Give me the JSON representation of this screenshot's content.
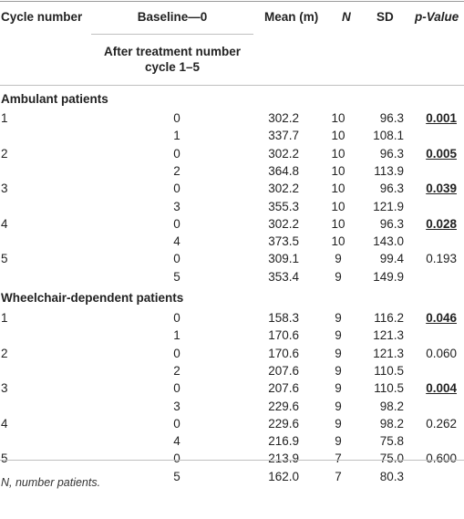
{
  "header": {
    "cycle_number": "Cycle number",
    "baseline": "Baseline—0",
    "after_treatment": "After treatment number cycle 1–5",
    "mean": "Mean (m)",
    "n": "N",
    "sd": "SD",
    "p_value": "p-Value"
  },
  "sections": [
    {
      "title": "Ambulant patients",
      "rows": [
        {
          "cycle": "1",
          "tr": "0",
          "mean": "302.2",
          "n": "10",
          "sd": "96.3",
          "p": "0.001",
          "sig": true
        },
        {
          "cycle": "",
          "tr": "1",
          "mean": "337.7",
          "n": "10",
          "sd": "108.1",
          "p": "",
          "sig": false
        },
        {
          "cycle": "2",
          "tr": "0",
          "mean": "302.2",
          "n": "10",
          "sd": "96.3",
          "p": "0.005",
          "sig": true
        },
        {
          "cycle": "",
          "tr": "2",
          "mean": "364.8",
          "n": "10",
          "sd": "113.9",
          "p": "",
          "sig": false
        },
        {
          "cycle": "3",
          "tr": "0",
          "mean": "302.2",
          "n": "10",
          "sd": "96.3",
          "p": "0.039",
          "sig": true
        },
        {
          "cycle": "",
          "tr": "3",
          "mean": "355.3",
          "n": "10",
          "sd": "121.9",
          "p": "",
          "sig": false
        },
        {
          "cycle": "4",
          "tr": "0",
          "mean": "302.2",
          "n": "10",
          "sd": "96.3",
          "p": "0.028",
          "sig": true
        },
        {
          "cycle": "",
          "tr": "4",
          "mean": "373.5",
          "n": "10",
          "sd": "143.0",
          "p": "",
          "sig": false
        },
        {
          "cycle": "5",
          "tr": "0",
          "mean": "309.1",
          "n": "9",
          "sd": "99.4",
          "p": "0.193",
          "sig": false
        },
        {
          "cycle": "",
          "tr": "5",
          "mean": "353.4",
          "n": "9",
          "sd": "149.9",
          "p": "",
          "sig": false
        }
      ]
    },
    {
      "title": "Wheelchair-dependent patients",
      "rows": [
        {
          "cycle": "1",
          "tr": "0",
          "mean": "158.3",
          "n": "9",
          "sd": "116.2",
          "p": "0.046",
          "sig": true
        },
        {
          "cycle": "",
          "tr": "1",
          "mean": "170.6",
          "n": "9",
          "sd": "121.3",
          "p": "",
          "sig": false
        },
        {
          "cycle": "2",
          "tr": "0",
          "mean": "170.6",
          "n": "9",
          "sd": "121.3",
          "p": "0.060",
          "sig": false
        },
        {
          "cycle": "",
          "tr": "2",
          "mean": "207.6",
          "n": "9",
          "sd": "110.5",
          "p": "",
          "sig": false
        },
        {
          "cycle": "3",
          "tr": "0",
          "mean": "207.6",
          "n": "9",
          "sd": "110.5",
          "p": "0.004",
          "sig": true
        },
        {
          "cycle": "",
          "tr": "3",
          "mean": "229.6",
          "n": "9",
          "sd": "98.2",
          "p": "",
          "sig": false
        },
        {
          "cycle": "4",
          "tr": "0",
          "mean": "229.6",
          "n": "9",
          "sd": "98.2",
          "p": "0.262",
          "sig": false
        },
        {
          "cycle": "",
          "tr": "4",
          "mean": "216.9",
          "n": "9",
          "sd": "75.8",
          "p": "",
          "sig": false
        },
        {
          "cycle": "5",
          "tr": "0",
          "mean": "213.9",
          "n": "7",
          "sd": "75.0",
          "p": "0.600",
          "sig": false
        },
        {
          "cycle": "",
          "tr": "5",
          "mean": "162.0",
          "n": "7",
          "sd": "80.3",
          "p": "",
          "sig": false
        }
      ]
    }
  ],
  "footnote": "N, number patients."
}
